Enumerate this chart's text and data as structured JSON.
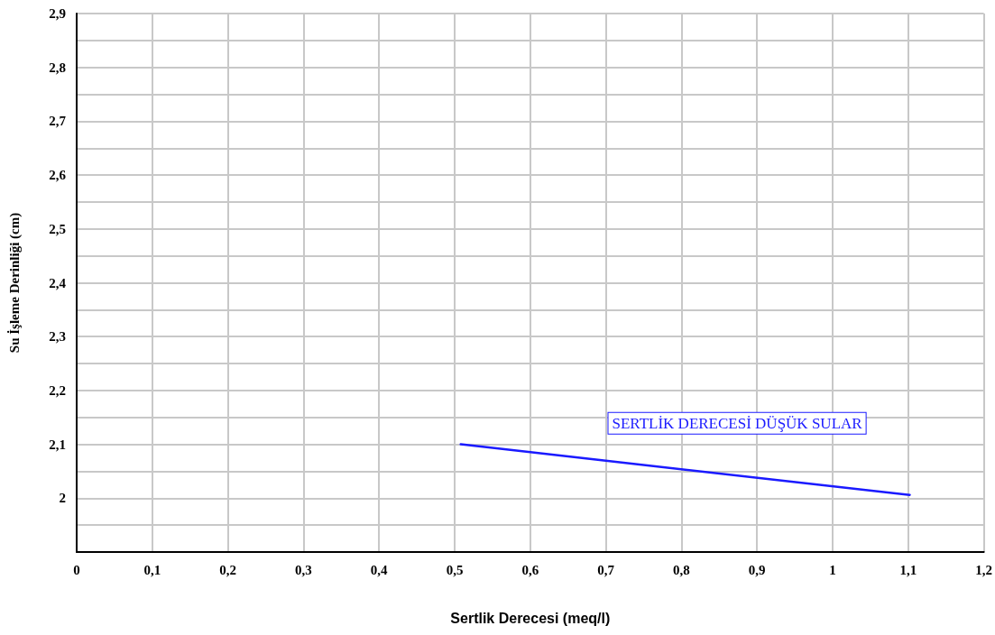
{
  "chart_data": {
    "type": "line",
    "xlabel": "Sertlik Derecesi (meq/l)",
    "ylabel": "Su İşleme Derinliği (cm)",
    "series": [
      {
        "name": "SERTLİK DERECESİ DÜŞÜK SULAR",
        "color": "#1a1aff",
        "x": [
          0.508,
          1.102
        ],
        "values": [
          2.1,
          2.006
        ]
      }
    ],
    "xlim": [
      0,
      1.2
    ],
    "xticks": [
      0,
      {
        "value": 0.1,
        "label": "0,1"
      },
      {
        "value": 0.2,
        "label": "0,2"
      },
      {
        "value": 0.3,
        "label": "0,3"
      },
      {
        "value": 0.4,
        "label": "0,4"
      },
      {
        "value": 0.5,
        "label": "0,5"
      },
      {
        "value": 0.6,
        "label": "0,6"
      },
      {
        "value": 0.7,
        "label": "0,7"
      },
      {
        "value": 0.8,
        "label": "0,8"
      },
      {
        "value": 0.9,
        "label": "0,9"
      },
      1,
      {
        "value": 1.1,
        "label": "1,1"
      },
      {
        "value": 1.2,
        "label": "1,2"
      }
    ],
    "ylim": [
      1.9,
      2.9
    ],
    "yticks": [
      {
        "value": 1.9,
        "label": null
      },
      {
        "value": 1.95,
        "label": null
      },
      2,
      {
        "value": 2.05,
        "label": null
      },
      {
        "value": 2.1,
        "label": "2,1"
      },
      {
        "value": 2.15,
        "label": null
      },
      {
        "value": 2.2,
        "label": "2,2"
      },
      {
        "value": 2.25,
        "label": null
      },
      {
        "value": 2.3,
        "label": "2,3"
      },
      {
        "value": 2.35,
        "label": null
      },
      {
        "value": 2.4,
        "label": "2,4"
      },
      {
        "value": 2.45,
        "label": null
      },
      {
        "value": 2.5,
        "label": "2,5"
      },
      {
        "value": 2.55,
        "label": null
      },
      {
        "value": 2.6,
        "label": "2,6"
      },
      {
        "value": 2.65,
        "label": null
      },
      {
        "value": 2.7,
        "label": "2,7"
      },
      {
        "value": 2.75,
        "label": null
      },
      {
        "value": 2.8,
        "label": "2,8"
      },
      {
        "value": 2.85,
        "label": null
      },
      {
        "value": 2.9,
        "label": "2,9"
      }
    ],
    "grid": true,
    "marker": "none",
    "line_style": "solid",
    "legend": false
  }
}
